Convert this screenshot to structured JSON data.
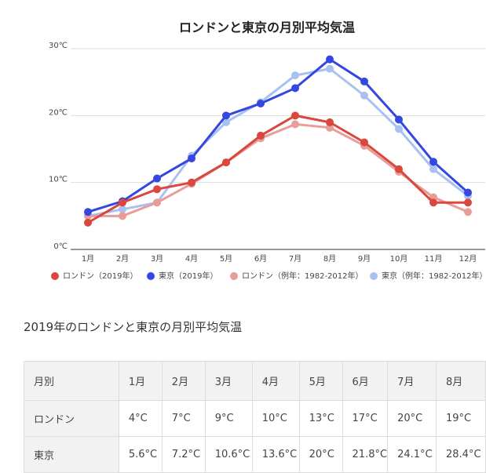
{
  "chart_data": {
    "type": "line",
    "title": "ロンドンと東京の月別平均気温",
    "categories": [
      "1月",
      "2月",
      "3月",
      "4月",
      "5月",
      "6月",
      "7月",
      "8月",
      "9月",
      "10月",
      "11月",
      "12月"
    ],
    "series": [
      {
        "name": "ロンドン（2019年）",
        "color": "#d9473d",
        "values": [
          4,
          7,
          9,
          10,
          13,
          17,
          20,
          19,
          16,
          12,
          7,
          7
        ]
      },
      {
        "name": "東京（2019年）",
        "color": "#3447e0",
        "values": [
          5.6,
          7.2,
          10.6,
          13.6,
          20,
          21.8,
          24.1,
          28.4,
          25.1,
          19.4,
          13.1,
          8.5
        ]
      },
      {
        "name": "ロンドン（例年：1982-2012年）",
        "color": "#e89d9a",
        "values": [
          5,
          5,
          7,
          9.8,
          13,
          16.6,
          18.7,
          18.2,
          15.5,
          11.6,
          7.8,
          5.6
        ]
      },
      {
        "name": "東京（例年：1982-2012年）",
        "color": "#a9c1f1",
        "values": [
          5,
          6,
          7,
          14,
          19,
          22,
          26,
          27,
          23,
          18,
          12,
          8
        ]
      }
    ],
    "ylim": [
      0,
      30
    ],
    "yticks": [
      {
        "value": 0,
        "label": "0℃"
      },
      {
        "value": 10,
        "label": "10℃"
      },
      {
        "value": 20,
        "label": "20℃"
      },
      {
        "value": 30,
        "label": "30℃"
      }
    ],
    "grid": true,
    "legend": "bottom"
  },
  "table": {
    "title": "2019年のロンドンと東京の月別平均気温",
    "header": [
      "月別",
      "1月",
      "2月",
      "3月",
      "4月",
      "5月",
      "6月",
      "7月",
      "8月"
    ],
    "rows": [
      [
        "ロンドン",
        "4°C",
        "7°C",
        "9°C",
        "10°C",
        "13°C",
        "17°C",
        "20°C",
        "19°C"
      ],
      [
        "東京",
        "5.6°C",
        "7.2°C",
        "10.6°C",
        "13.6°C",
        "20°C",
        "21.8°C",
        "24.1°C",
        "28.4°C"
      ]
    ]
  }
}
